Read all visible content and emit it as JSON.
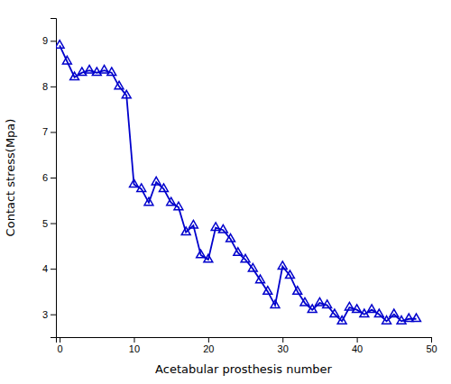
{
  "chart_data": {
    "type": "line",
    "x": [
      0,
      1,
      2,
      3,
      4,
      5,
      6,
      7,
      8,
      9,
      10,
      11,
      12,
      13,
      14,
      15,
      16,
      17,
      18,
      19,
      20,
      21,
      22,
      23,
      24,
      25,
      26,
      27,
      28,
      29,
      30,
      31,
      32,
      33,
      34,
      35,
      36,
      37,
      38,
      39,
      40,
      41,
      42,
      43,
      44,
      45,
      46,
      47,
      48
    ],
    "values": [
      8.9,
      8.55,
      8.2,
      8.3,
      8.35,
      8.3,
      8.35,
      8.3,
      8.0,
      7.8,
      5.85,
      5.75,
      5.45,
      5.9,
      5.75,
      5.45,
      5.35,
      4.8,
      4.95,
      4.3,
      4.2,
      4.9,
      4.85,
      4.65,
      4.35,
      4.2,
      4.0,
      3.75,
      3.5,
      3.2,
      4.05,
      3.85,
      3.5,
      3.25,
      3.1,
      3.25,
      3.2,
      3.0,
      2.85,
      3.15,
      3.1,
      3.0,
      3.1,
      3.0,
      2.85,
      3.0,
      2.85,
      2.9,
      2.9
    ],
    "color": "#0000cc",
    "marker": "triangle",
    "xlabel": "Acetabular prosthesis number",
    "ylabel": "Contact stress(Mpa)",
    "xlim": [
      -0.5,
      50
    ],
    "ylim": [
      2.5,
      9.5
    ],
    "xticks": [
      0,
      10,
      20,
      30,
      40,
      50
    ],
    "yticks": [
      3,
      4,
      5,
      6,
      7,
      8,
      9
    ],
    "grid": false
  }
}
